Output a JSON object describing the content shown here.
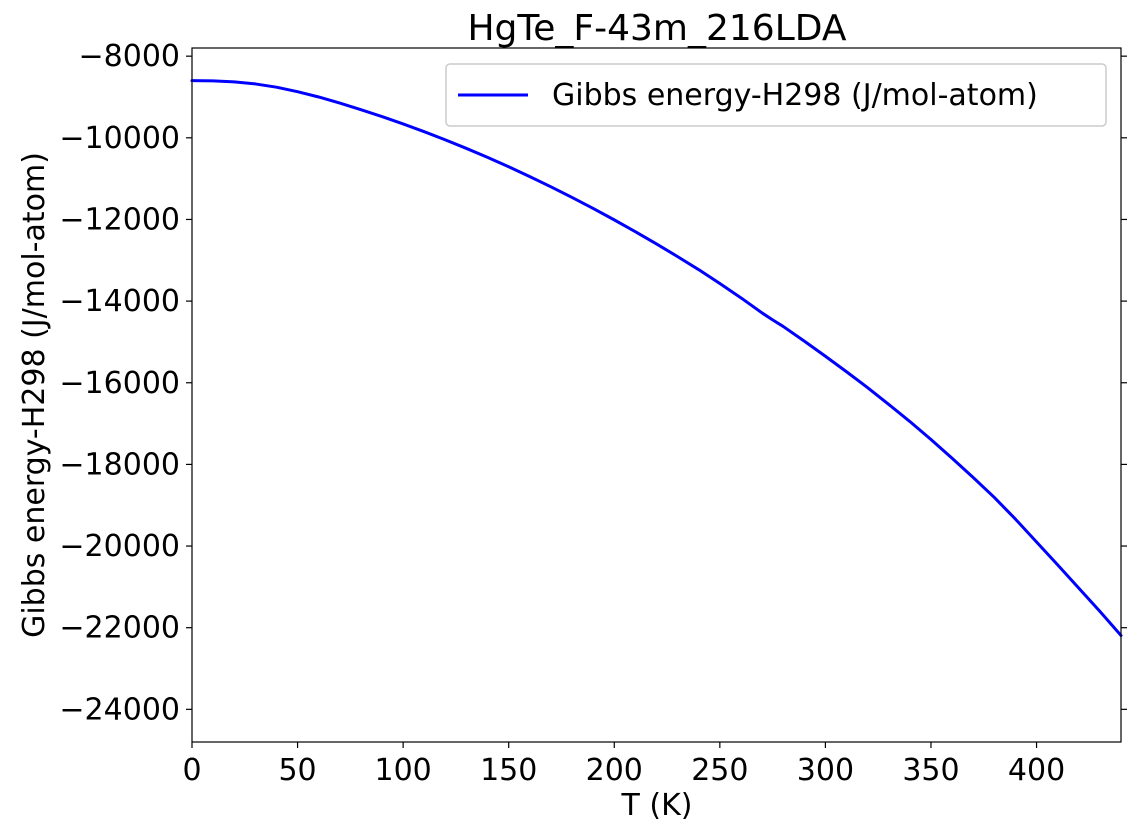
{
  "chart_data": {
    "type": "line",
    "title": "HgTe_F-43m_216LDA",
    "xlabel": "T (K)",
    "ylabel": "Gibbs energy-H298 (J/mol-atom)",
    "xlim": [
      0,
      440
    ],
    "ylim": [
      -24800,
      -7800
    ],
    "xticks": [
      0,
      50,
      100,
      150,
      200,
      250,
      300,
      350,
      400
    ],
    "yticks": [
      -8000,
      -10000,
      -12000,
      -14000,
      -16000,
      -18000,
      -20000,
      -22000,
      -24000
    ],
    "xtick_labels": [
      "0",
      "50",
      "100",
      "150",
      "200",
      "250",
      "300",
      "350",
      "400"
    ],
    "ytick_labels": [
      "−8000",
      "−10000",
      "−12000",
      "−14000",
      "−16000",
      "−18000",
      "−20000",
      "−22000",
      "−24000"
    ],
    "legend_position": "top-right",
    "grid": false,
    "series": [
      {
        "name": "Gibbs energy-H298 (J/mol-atom)",
        "color": "#0000ff",
        "x": [
          0,
          10,
          20,
          30,
          40,
          50,
          60,
          70,
          80,
          90,
          100,
          110,
          120,
          130,
          140,
          150,
          160,
          170,
          180,
          190,
          200,
          210,
          220,
          230,
          240,
          250,
          260,
          270,
          275,
          280,
          290,
          300,
          310,
          320,
          330,
          340,
          350,
          360,
          370,
          380,
          390,
          400,
          410,
          420,
          430,
          440
        ],
        "y": [
          -8600,
          -8605,
          -8630,
          -8680,
          -8760,
          -8870,
          -9000,
          -9150,
          -9310,
          -9480,
          -9660,
          -9850,
          -10050,
          -10260,
          -10480,
          -10710,
          -10950,
          -11200,
          -11460,
          -11730,
          -12010,
          -12300,
          -12600,
          -12910,
          -13230,
          -13570,
          -13920,
          -14290,
          -14460,
          -14620,
          -14980,
          -15350,
          -15730,
          -16120,
          -16530,
          -16950,
          -17390,
          -17850,
          -18320,
          -18810,
          -19340,
          -19900,
          -20460,
          -21030,
          -21600,
          -22190
        ]
      }
    ]
  }
}
